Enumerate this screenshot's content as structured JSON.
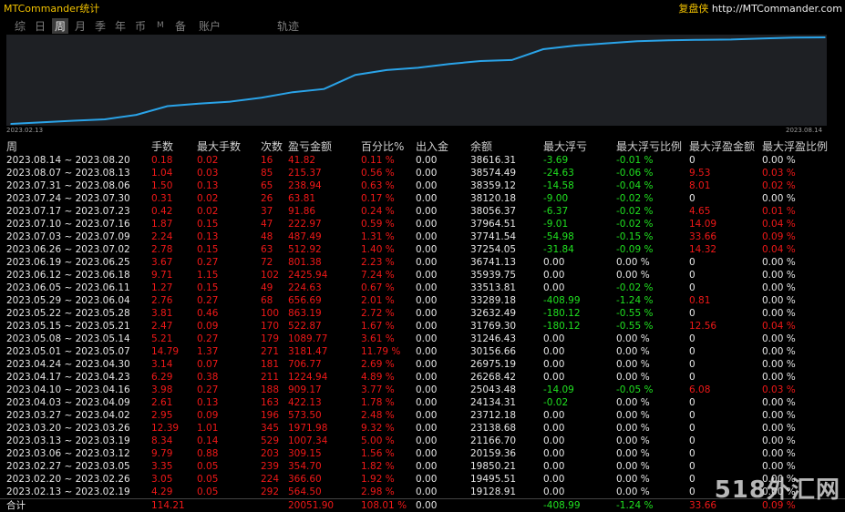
{
  "app": {
    "title": "MTCommander统计",
    "brand_cn": "复盘侠",
    "brand_url": "http://MTCommander.com"
  },
  "tabs": [
    "综",
    "日",
    "周",
    "月",
    "季",
    "年",
    "币",
    "M",
    "备",
    "账户",
    "轨迹"
  ],
  "active_tab": "周",
  "chart": {
    "start_date": "2023.02.13",
    "end_date": "2023.08.14",
    "line_color": "#2aa3e8"
  },
  "chart_data": {
    "type": "line",
    "x": [
      "2023.02.13",
      "2023.02.20",
      "2023.02.27",
      "2023.03.06",
      "2023.03.13",
      "2023.03.20",
      "2023.03.27",
      "2023.04.03",
      "2023.04.10",
      "2023.04.17",
      "2023.04.24",
      "2023.05.01",
      "2023.05.08",
      "2023.05.15",
      "2023.05.22",
      "2023.05.29",
      "2023.06.05",
      "2023.06.12",
      "2023.06.19",
      "2023.06.26",
      "2023.07.03",
      "2023.07.10",
      "2023.07.17",
      "2023.07.24",
      "2023.07.31",
      "2023.08.07",
      "2023.08.14"
    ],
    "values": [
      19128.91,
      19495.51,
      19850.21,
      20159.36,
      21166.7,
      23138.68,
      23712.18,
      24134.31,
      25043.48,
      26268.42,
      26975.19,
      30156.66,
      31246.43,
      31769.3,
      32632.49,
      33289.18,
      33513.81,
      35939.75,
      36741.13,
      37254.05,
      37741.54,
      37964.51,
      38056.37,
      38120.18,
      38359.12,
      38574.49,
      38616.31
    ]
  },
  "table": {
    "headers": [
      "周",
      "手数",
      "最大手数",
      "次数",
      "盈亏金额",
      "百分比%",
      "出入金",
      "余额",
      "最大浮亏",
      "最大浮亏比例",
      "最大浮盈金额",
      "最大浮盈比例"
    ],
    "rows": [
      [
        "2023.08.14 ~ 2023.08.20",
        "0.18",
        "0.02",
        "16",
        "41.82",
        "0.11 %",
        "0.00",
        "38616.31",
        "-3.69",
        "-0.01 %",
        "0",
        "0.00 %"
      ],
      [
        "2023.08.07 ~ 2023.08.13",
        "1.04",
        "0.03",
        "85",
        "215.37",
        "0.56 %",
        "0.00",
        "38574.49",
        "-24.63",
        "-0.06 %",
        "9.53",
        "0.03 %"
      ],
      [
        "2023.07.31 ~ 2023.08.06",
        "1.50",
        "0.13",
        "65",
        "238.94",
        "0.63 %",
        "0.00",
        "38359.12",
        "-14.58",
        "-0.04 %",
        "8.01",
        "0.02 %"
      ],
      [
        "2023.07.24 ~ 2023.07.30",
        "0.31",
        "0.02",
        "26",
        "63.81",
        "0.17 %",
        "0.00",
        "38120.18",
        "-9.00",
        "-0.02 %",
        "0",
        "0.00 %"
      ],
      [
        "2023.07.17 ~ 2023.07.23",
        "0.42",
        "0.02",
        "37",
        "91.86",
        "0.24 %",
        "0.00",
        "38056.37",
        "-6.37",
        "-0.02 %",
        "4.65",
        "0.01 %"
      ],
      [
        "2023.07.10 ~ 2023.07.16",
        "1.87",
        "0.15",
        "47",
        "222.97",
        "0.59 %",
        "0.00",
        "37964.51",
        "-9.01",
        "-0.02 %",
        "14.09",
        "0.04 %"
      ],
      [
        "2023.07.03 ~ 2023.07.09",
        "2.24",
        "0.13",
        "48",
        "487.49",
        "1.31 %",
        "0.00",
        "37741.54",
        "-54.98",
        "-0.15 %",
        "33.66",
        "0.09 %"
      ],
      [
        "2023.06.26 ~ 2023.07.02",
        "2.78",
        "0.15",
        "63",
        "512.92",
        "1.40 %",
        "0.00",
        "37254.05",
        "-31.84",
        "-0.09 %",
        "14.32",
        "0.04 %"
      ],
      [
        "2023.06.19 ~ 2023.06.25",
        "3.67",
        "0.27",
        "72",
        "801.38",
        "2.23 %",
        "0.00",
        "36741.13",
        "0.00",
        "0.00 %",
        "0",
        "0.00 %"
      ],
      [
        "2023.06.12 ~ 2023.06.18",
        "9.71",
        "1.15",
        "102",
        "2425.94",
        "7.24 %",
        "0.00",
        "35939.75",
        "0.00",
        "0.00 %",
        "0",
        "0.00 %"
      ],
      [
        "2023.06.05 ~ 2023.06.11",
        "1.27",
        "0.15",
        "49",
        "224.63",
        "0.67 %",
        "0.00",
        "33513.81",
        "0.00",
        "-0.02 %",
        "0",
        "0.00 %"
      ],
      [
        "2023.05.29 ~ 2023.06.04",
        "2.76",
        "0.27",
        "68",
        "656.69",
        "2.01 %",
        "0.00",
        "33289.18",
        "-408.99",
        "-1.24 %",
        "0.81",
        "0.00 %"
      ],
      [
        "2023.05.22 ~ 2023.05.28",
        "3.81",
        "0.46",
        "100",
        "863.19",
        "2.72 %",
        "0.00",
        "32632.49",
        "-180.12",
        "-0.55 %",
        "0",
        "0.00 %"
      ],
      [
        "2023.05.15 ~ 2023.05.21",
        "2.47",
        "0.09",
        "170",
        "522.87",
        "1.67 %",
        "0.00",
        "31769.30",
        "-180.12",
        "-0.55 %",
        "12.56",
        "0.04 %"
      ],
      [
        "2023.05.08 ~ 2023.05.14",
        "5.21",
        "0.27",
        "179",
        "1089.77",
        "3.61 %",
        "0.00",
        "31246.43",
        "0.00",
        "0.00 %",
        "0",
        "0.00 %"
      ],
      [
        "2023.05.01 ~ 2023.05.07",
        "14.79",
        "1.37",
        "271",
        "3181.47",
        "11.79 %",
        "0.00",
        "30156.66",
        "0.00",
        "0.00 %",
        "0",
        "0.00 %"
      ],
      [
        "2023.04.24 ~ 2023.04.30",
        "3.14",
        "0.07",
        "181",
        "706.77",
        "2.69 %",
        "0.00",
        "26975.19",
        "0.00",
        "0.00 %",
        "0",
        "0.00 %"
      ],
      [
        "2023.04.17 ~ 2023.04.23",
        "6.29",
        "0.38",
        "211",
        "1224.94",
        "4.89 %",
        "0.00",
        "26268.42",
        "0.00",
        "0.00 %",
        "0",
        "0.00 %"
      ],
      [
        "2023.04.10 ~ 2023.04.16",
        "3.98",
        "0.27",
        "188",
        "909.17",
        "3.77 %",
        "0.00",
        "25043.48",
        "-14.09",
        "-0.05 %",
        "6.08",
        "0.03 %"
      ],
      [
        "2023.04.03 ~ 2023.04.09",
        "2.61",
        "0.13",
        "163",
        "422.13",
        "1.78 %",
        "0.00",
        "24134.31",
        "-0.02",
        "0.00 %",
        "0",
        "0.00 %"
      ],
      [
        "2023.03.27 ~ 2023.04.02",
        "2.95",
        "0.09",
        "196",
        "573.50",
        "2.48 %",
        "0.00",
        "23712.18",
        "0.00",
        "0.00 %",
        "0",
        "0.00 %"
      ],
      [
        "2023.03.20 ~ 2023.03.26",
        "12.39",
        "1.01",
        "345",
        "1971.98",
        "9.32 %",
        "0.00",
        "23138.68",
        "0.00",
        "0.00 %",
        "0",
        "0.00 %"
      ],
      [
        "2023.03.13 ~ 2023.03.19",
        "8.34",
        "0.14",
        "529",
        "1007.34",
        "5.00 %",
        "0.00",
        "21166.70",
        "0.00",
        "0.00 %",
        "0",
        "0.00 %"
      ],
      [
        "2023.03.06 ~ 2023.03.12",
        "9.79",
        "0.88",
        "203",
        "309.15",
        "1.56 %",
        "0.00",
        "20159.36",
        "0.00",
        "0.00 %",
        "0",
        "0.00 %"
      ],
      [
        "2023.02.27 ~ 2023.03.05",
        "3.35",
        "0.05",
        "239",
        "354.70",
        "1.82 %",
        "0.00",
        "19850.21",
        "0.00",
        "0.00 %",
        "0",
        "0.00 %"
      ],
      [
        "2023.02.20 ~ 2023.02.26",
        "3.05",
        "0.05",
        "224",
        "366.60",
        "1.92 %",
        "0.00",
        "19495.51",
        "0.00",
        "0.00 %",
        "0",
        "0.00 %"
      ],
      [
        "2023.02.13 ~ 2023.02.19",
        "4.29",
        "0.05",
        "292",
        "564.50",
        "2.98 %",
        "0.00",
        "19128.91",
        "0.00",
        "0.00 %",
        "0",
        "0.00 %"
      ]
    ],
    "total": [
      "合计",
      "114.21",
      "",
      "",
      "20051.90",
      "108.01 %",
      "0.00",
      "",
      "-408.99",
      "-1.24 %",
      "33.66",
      "0.09 %"
    ]
  },
  "watermark": "518外汇网"
}
